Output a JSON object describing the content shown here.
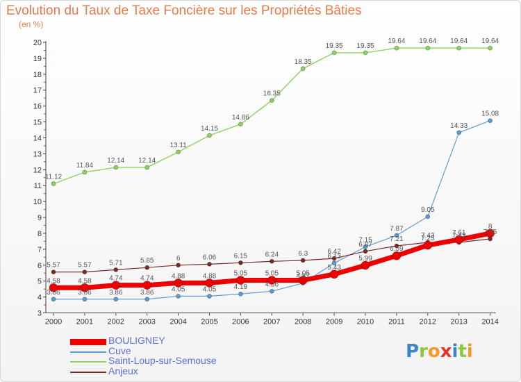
{
  "title": "Evolution du Taux de Taxe Foncière sur les Propriétés Bâties",
  "unit": "(en %)",
  "logo": "Proxiti",
  "logo_letters": [
    {
      "ch": "P",
      "color": "#3b86c6"
    },
    {
      "ch": "r",
      "color": "#8cc63f"
    },
    {
      "ch": "o",
      "color": "#f39a2b"
    },
    {
      "ch": "x",
      "color": "#e6332a"
    },
    {
      "ch": "i",
      "color": "#3b86c6"
    },
    {
      "ch": "t",
      "color": "#8cc63f"
    },
    {
      "ch": "i",
      "color": "#f39a2b"
    }
  ],
  "chart_data": {
    "type": "line",
    "x": [
      2000,
      2001,
      2002,
      2003,
      2004,
      2005,
      2006,
      2007,
      2008,
      2009,
      2010,
      2011,
      2012,
      2013,
      2014
    ],
    "ylim": [
      3,
      20
    ],
    "yticks": [
      3,
      4,
      5,
      6,
      7,
      8,
      9,
      10,
      11,
      12,
      13,
      14,
      15,
      16,
      17,
      18,
      19,
      20
    ],
    "grid": false,
    "legend_position": "bottom-left",
    "series": [
      {
        "name": "BOULIGNEY",
        "color": "#ee0000",
        "values": [
          4.58,
          4.58,
          4.74,
          4.74,
          4.88,
          4.88,
          5.05,
          5.05,
          5.05,
          5.43,
          5.99,
          6.59,
          7.25,
          7.61,
          8
        ],
        "labels": [
          "4.58",
          "4.58",
          "4.74",
          "4.74",
          "4.88",
          "4.88",
          "5.05",
          "5.05",
          "5.05",
          "5.43",
          "5.99",
          "6.59",
          "7.25",
          "7.61",
          "8"
        ]
      },
      {
        "name": "Cuve",
        "color": "#5b9bd5",
        "values": [
          3.86,
          3.86,
          3.86,
          3.86,
          4.05,
          4.05,
          4.19,
          4.36,
          4.87,
          6.13,
          7.15,
          7.87,
          9.05,
          14.33,
          15.08
        ],
        "labels": [
          "3.86",
          "3.86",
          "3.86",
          "3.86",
          "4.05",
          "4.05",
          "4.19",
          "4.36",
          "4.87",
          "6.13",
          "7.15",
          "7.87",
          "9.05",
          "14.33",
          "15.08"
        ]
      },
      {
        "name": "Saint-Loup-sur-Semouse",
        "color": "#8dd35f",
        "values": [
          11.12,
          11.84,
          12.14,
          12.14,
          13.11,
          14.15,
          14.86,
          16.35,
          18.35,
          19.35,
          19.35,
          19.64,
          19.64,
          19.64,
          19.64
        ],
        "labels": [
          "11.12",
          "11.84",
          "12.14",
          "12.14",
          "13.11",
          "14.15",
          "14.86",
          "16.35",
          "18.35",
          "19.35",
          "19.35",
          "19.64",
          "19.64",
          "19.64",
          "19.64"
        ]
      },
      {
        "name": "Anjeux",
        "color": "#7b2a2a",
        "values": [
          5.57,
          5.57,
          5.71,
          5.85,
          6,
          6.06,
          6.15,
          6.24,
          6.3,
          6.42,
          6.87,
          7.21,
          7.43,
          7.43,
          7.65
        ],
        "labels": [
          "5.57",
          "5.57",
          "5.71",
          "5.85",
          "6",
          "6.06",
          "6.15",
          "6.24",
          "6.3",
          "6.42",
          "6.87",
          "7.21",
          "7.43",
          "7.43",
          "7.65"
        ]
      }
    ]
  }
}
